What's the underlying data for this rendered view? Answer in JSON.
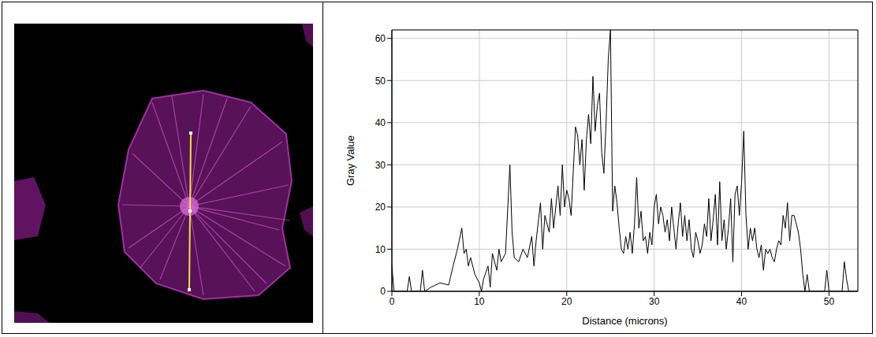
{
  "chart_data": {
    "type": "line",
    "x_label": "Distance (microns)",
    "y_label": "Gray Value",
    "xlim": [
      0,
      53.3
    ],
    "xticks": [
      0,
      10,
      20,
      30,
      40,
      50
    ],
    "ylim": [
      0,
      62
    ],
    "yticks": [
      0,
      10,
      20,
      30,
      40,
      50,
      60
    ],
    "grid": true,
    "color": "#000000",
    "x": [
      0,
      0.25,
      1.75,
      2,
      2.25,
      3.25,
      3.5,
      3.75,
      4.5,
      5.5,
      6.5,
      7,
      7.5,
      8,
      8.25,
      8.5,
      8.75,
      9,
      9.5,
      10,
      10.25,
      10.5,
      11,
      11.25,
      11.5,
      12,
      12.25,
      12.5,
      13,
      13.5,
      13.75,
      14,
      14.5,
      15,
      15.5,
      16,
      16.25,
      16.5,
      17,
      17.25,
      17.5,
      18,
      18.25,
      18.5,
      19,
      19.25,
      19.5,
      19.75,
      20,
      20.25,
      20.5,
      21,
      21.25,
      21.5,
      21.75,
      22,
      22.25,
      22.5,
      22.75,
      23,
      23.25,
      23.5,
      23.75,
      24,
      24.25,
      24.5,
      24.75,
      25,
      25.25,
      25.5,
      25.75,
      26,
      26.25,
      26.5,
      26.75,
      27,
      27.25,
      27.5,
      27.75,
      28,
      28.25,
      28.5,
      28.75,
      29,
      29.25,
      29.5,
      29.75,
      30,
      30.25,
      30.5,
      30.75,
      31,
      31.25,
      31.5,
      31.75,
      32,
      32.25,
      32.5,
      32.75,
      33,
      33.25,
      33.5,
      33.75,
      34,
      34.25,
      34.5,
      34.75,
      35,
      35.25,
      35.5,
      35.75,
      36,
      36.25,
      36.5,
      36.75,
      37,
      37.25,
      37.5,
      37.75,
      38,
      38.25,
      38.5,
      38.75,
      39,
      39.25,
      39.5,
      39.75,
      40,
      40.25,
      40.5,
      40.75,
      41,
      41.25,
      41.5,
      41.75,
      42,
      42.25,
      42.5,
      42.75,
      43,
      43.25,
      43.5,
      43.75,
      44,
      44.25,
      44.5,
      44.75,
      45,
      45.25,
      45.5,
      45.75,
      46,
      46.25,
      46.5,
      46.75,
      47,
      47.25,
      47.5,
      47.75,
      49.5,
      49.75,
      50,
      51.5,
      51.75,
      52,
      52.25,
      53.3
    ],
    "values": [
      6,
      0,
      0,
      3.5,
      0,
      0,
      5,
      0,
      1,
      2,
      1.5,
      6,
      10,
      15,
      9,
      10,
      6,
      8,
      4,
      2,
      0,
      3,
      6,
      1,
      9,
      5,
      10,
      7,
      9,
      30,
      14,
      8,
      7,
      10,
      8,
      13,
      6,
      12,
      21,
      10,
      18,
      14,
      22,
      15,
      25,
      18,
      30,
      20,
      24,
      22,
      18,
      39,
      37,
      30,
      36,
      24,
      36,
      42,
      35,
      51,
      38,
      44,
      47,
      33,
      28,
      40,
      55,
      62,
      19,
      25,
      21,
      15,
      10,
      9,
      13,
      10,
      14,
      9,
      16,
      27,
      15,
      19,
      12,
      13,
      9,
      14,
      11,
      20,
      23,
      16,
      20,
      18,
      14,
      17,
      12,
      20,
      15,
      10,
      16,
      21,
      13,
      18,
      12,
      17,
      10,
      8,
      14,
      12,
      9,
      11,
      16,
      13,
      22,
      12,
      17,
      23,
      11,
      26,
      12,
      17,
      10,
      15,
      22,
      7,
      23,
      25,
      18,
      26,
      38,
      18,
      10,
      15,
      12,
      15,
      10,
      8,
      11,
      5,
      10,
      9,
      10,
      8,
      7,
      10,
      12,
      11,
      18,
      15,
      21,
      12,
      18,
      18,
      16,
      14,
      10,
      4,
      0,
      4,
      0,
      0,
      5,
      0,
      0,
      7,
      3,
      0,
      0
    ]
  }
}
